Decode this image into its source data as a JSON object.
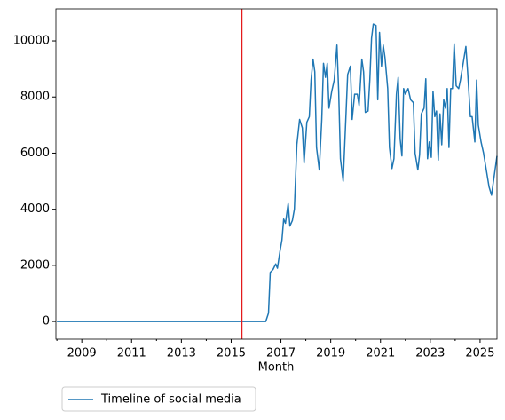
{
  "chart_data": {
    "type": "line",
    "xlabel": "Month",
    "x": [
      2008.0,
      2016.39,
      2016.5,
      2016.57,
      2016.68,
      2016.79,
      2016.86,
      2016.96,
      2017.04,
      2017.11,
      2017.18,
      2017.29,
      2017.36,
      2017.46,
      2017.54,
      2017.64,
      2017.75,
      2017.86,
      2017.93,
      2018.04,
      2018.14,
      2018.21,
      2018.29,
      2018.36,
      2018.43,
      2018.54,
      2018.64,
      2018.71,
      2018.79,
      2018.86,
      2018.93,
      2019.04,
      2019.14,
      2019.25,
      2019.32,
      2019.39,
      2019.5,
      2019.61,
      2019.68,
      2019.79,
      2019.86,
      2019.96,
      2020.07,
      2020.14,
      2020.25,
      2020.32,
      2020.39,
      2020.5,
      2020.57,
      2020.64,
      2020.71,
      2020.82,
      2020.89,
      2020.96,
      2021.04,
      2021.11,
      2021.18,
      2021.29,
      2021.36,
      2021.46,
      2021.54,
      2021.64,
      2021.71,
      2021.79,
      2021.86,
      2021.93,
      2022.0,
      2022.11,
      2022.21,
      2022.32,
      2022.39,
      2022.5,
      2022.57,
      2022.64,
      2022.75,
      2022.82,
      2022.89,
      2022.96,
      2023.04,
      2023.11,
      2023.18,
      2023.25,
      2023.32,
      2023.39,
      2023.46,
      2023.54,
      2023.61,
      2023.68,
      2023.75,
      2023.82,
      2023.89,
      2023.96,
      2024.04,
      2024.14,
      2024.21,
      2024.32,
      2024.43,
      2024.5,
      2024.61,
      2024.68,
      2024.79,
      2024.86,
      2024.93,
      2025.04,
      2025.14,
      2025.25,
      2025.36,
      2025.46,
      2025.57,
      2025.68
    ],
    "series": [
      {
        "name": "Timeline of social media",
        "color": "#1f77b4",
        "values": [
          0,
          0,
          300,
          1750,
          1850,
          2050,
          1900,
          2500,
          2900,
          3650,
          3500,
          4200,
          3400,
          3600,
          4000,
          6300,
          7200,
          6900,
          5650,
          7100,
          7300,
          8600,
          9350,
          8900,
          6200,
          5400,
          7200,
          9200,
          8700,
          9200,
          7600,
          8200,
          8600,
          9850,
          8200,
          5800,
          5000,
          7300,
          8800,
          9100,
          7200,
          8100,
          8100,
          7700,
          9350,
          8900,
          7450,
          7500,
          8600,
          10100,
          10600,
          10550,
          7900,
          10300,
          9100,
          9850,
          9400,
          8300,
          6200,
          5450,
          5800,
          8100,
          8700,
          6500,
          5900,
          8300,
          8100,
          8300,
          7900,
          7800,
          6000,
          5400,
          5950,
          7400,
          7600,
          8650,
          5800,
          6400,
          5850,
          8200,
          7300,
          7500,
          5750,
          7400,
          6300,
          7900,
          7600,
          8300,
          6200,
          8300,
          8300,
          9900,
          8400,
          8300,
          8600,
          9200,
          9800,
          8900,
          7300,
          7300,
          6400,
          8600,
          7000,
          6400,
          6000,
          5400,
          4800,
          4500,
          5200,
          5900
        ]
      }
    ],
    "xlim": [
      2007.96,
      2025.68
    ],
    "xticks": [
      2009,
      2011,
      2013,
      2015,
      2017,
      2019,
      2021,
      2023,
      2025
    ],
    "xminorticks": [
      2008,
      2010,
      2012,
      2014,
      2016,
      2018,
      2020,
      2022,
      2024
    ],
    "ylim": [
      -630,
      11140
    ],
    "yticks": [
      0,
      2000,
      4000,
      6000,
      8000,
      10000
    ],
    "vline": {
      "x": 2015.42,
      "color": "#e41a1c"
    },
    "legend": "below-left"
  }
}
